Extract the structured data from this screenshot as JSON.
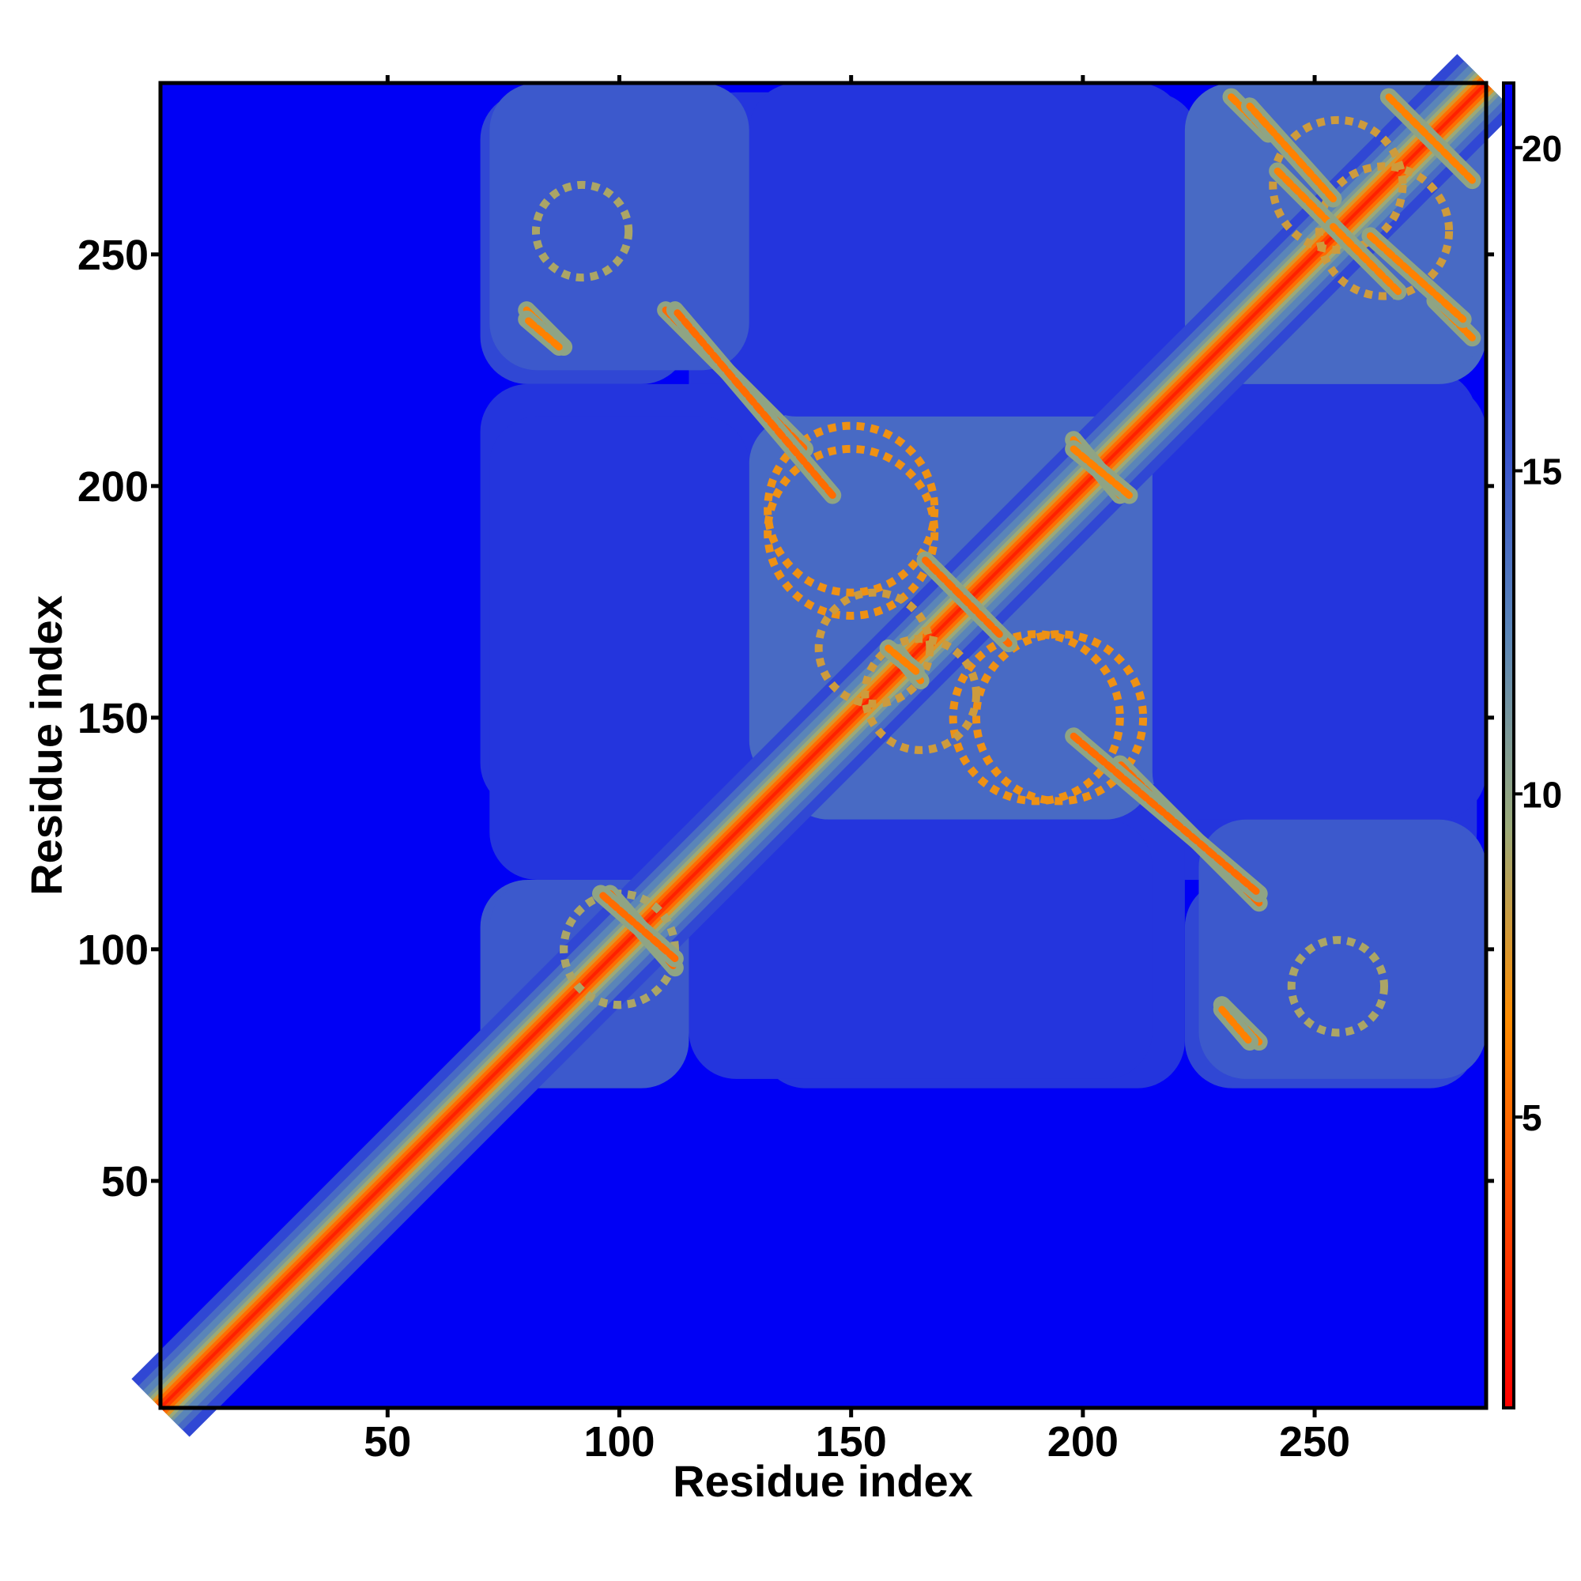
{
  "chart_data": {
    "type": "heatmap",
    "title": "",
    "xlabel": "Residue index",
    "ylabel": "Residue index",
    "xlim": [
      1,
      287
    ],
    "ylim": [
      1,
      287
    ],
    "x_ticks": [
      50,
      100,
      150,
      200,
      250
    ],
    "y_ticks": [
      50,
      100,
      150,
      200,
      250
    ],
    "colorbar": {
      "range": [
        0.5,
        21.0
      ],
      "ticks": [
        5,
        10,
        15,
        20
      ],
      "colors": [
        "#ff0000",
        "#ff8c00",
        "#9aaa7a",
        "#5a85b8",
        "#0000f5"
      ],
      "stops": [
        0,
        6.5,
        9.5,
        12.5,
        20
      ]
    },
    "background_value": 21,
    "diagonal_profile": [
      [
        0,
        1.5
      ],
      [
        1,
        3.0
      ],
      [
        2,
        5.0
      ],
      [
        3,
        7.5
      ],
      [
        4,
        9.5
      ],
      [
        5,
        11.0
      ],
      [
        7,
        12.5
      ],
      [
        9,
        14.0
      ],
      [
        12,
        16.0
      ]
    ],
    "contact_regions": [
      {
        "x": [
          70,
          115
        ],
        "y": [
          72,
          115
        ],
        "value": 15
      },
      {
        "x": [
          70,
          115
        ],
        "y": [
          222,
          285
        ],
        "value": 16
      },
      {
        "x": [
          115,
          155
        ],
        "y": [
          150,
          285
        ],
        "value": 17
      },
      {
        "x": [
          70,
          135
        ],
        "y": [
          130,
          222
        ],
        "value": 17
      },
      {
        "x": [
          135,
          215
        ],
        "y": [
          128,
          222
        ],
        "value": 14
      },
      {
        "x": [
          155,
          225
        ],
        "y": [
          222,
          285
        ],
        "value": 17
      },
      {
        "x": [
          215,
          287
        ],
        "y": [
          128,
          222
        ],
        "value": 17
      },
      {
        "x": [
          225,
          287
        ],
        "y": [
          222,
          287
        ],
        "value": 14
      },
      {
        "x": [
          115,
          215
        ],
        "y": [
          72,
          128
        ],
        "value": 17
      },
      {
        "x": [
          225,
          287
        ],
        "y": [
          72,
          128
        ],
        "value": 15
      }
    ],
    "off_diagonal_contacts": [
      {
        "from": [
          98,
          112
        ],
        "to": [
          112,
          96
        ],
        "value": 5
      },
      {
        "from": [
          80,
          238
        ],
        "to": [
          88,
          230
        ],
        "value": 6
      },
      {
        "from": [
          110,
          238
        ],
        "to": [
          140,
          208
        ],
        "value": 5
      },
      {
        "from": [
          168,
          182
        ],
        "to": [
          184,
          166
        ],
        "value": 5
      },
      {
        "from": [
          198,
          210
        ],
        "to": [
          208,
          198
        ],
        "value": 6
      },
      {
        "from": [
          160,
          164
        ],
        "to": [
          165,
          158
        ],
        "value": 6
      },
      {
        "from": [
          198,
          146
        ],
        "to": [
          238,
          112
        ],
        "value": 5
      },
      {
        "from": [
          230,
          87
        ],
        "to": [
          236,
          80
        ],
        "value": 6
      },
      {
        "from": [
          232,
          284
        ],
        "to": [
          240,
          276
        ],
        "value": 6
      },
      {
        "from": [
          266,
          284
        ],
        "to": [
          284,
          266
        ],
        "value": 6
      },
      {
        "from": [
          262,
          254
        ],
        "to": [
          282,
          236
        ],
        "value": 6
      },
      {
        "from": [
          242,
          268
        ],
        "to": [
          256,
          254
        ],
        "value": 6
      }
    ],
    "rings": [
      {
        "cx": 150,
        "cy": 190,
        "r": 18,
        "value": 7
      },
      {
        "cx": 195,
        "cy": 150,
        "r": 18,
        "value": 7
      },
      {
        "cx": 165,
        "cy": 155,
        "r": 12,
        "value": 8
      },
      {
        "cx": 255,
        "cy": 265,
        "r": 14,
        "value": 8
      },
      {
        "cx": 100,
        "cy": 100,
        "r": 12,
        "value": 9
      },
      {
        "cx": 92,
        "cy": 255,
        "r": 10,
        "value": 9
      }
    ]
  }
}
